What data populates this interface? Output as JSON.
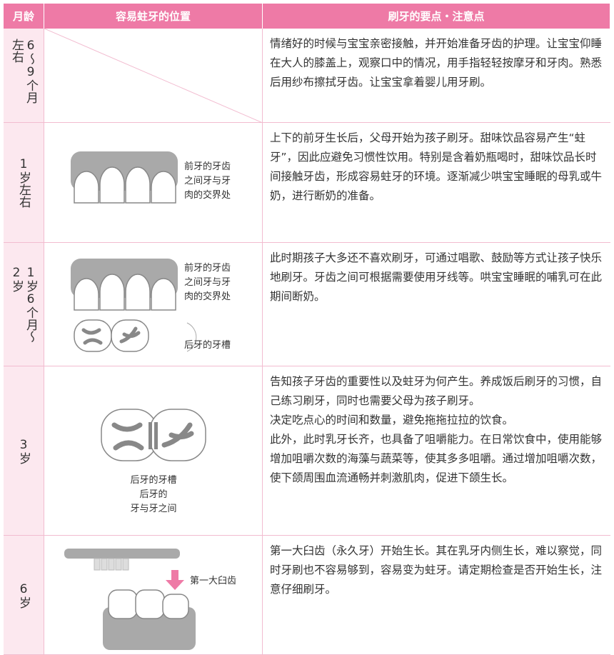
{
  "header": {
    "age": "月龄",
    "position": "容易蛀牙的位置",
    "points": "刷牙的要点・注意点"
  },
  "rows": [
    {
      "age": "6～9个月左右",
      "labels": [],
      "text": [
        "情绪好的时候与宝宝亲密接触，并开始准备牙齿的护理。让宝宝仰睡在大人的膝盖上，观察口中的情况，用手指轻轻按摩牙和牙肉。熟悉后用纱布擦拭牙齿。让宝宝拿着婴儿用牙刷。"
      ]
    },
    {
      "age": "1岁左右",
      "labels": [
        "前牙的牙齿",
        "之间牙与牙",
        "肉的交界处"
      ],
      "text": [
        "上下的前牙生长后，父母开始为孩子刷牙。甜味饮品容易产生“蛀牙”，因此应避免习惯性饮用。特别是含着奶瓶喝时，甜味饮品长时间接触牙齿，形成容易蛀牙的环境。逐渐减少哄宝宝睡眠的母乳或牛奶，进行断奶的准备。"
      ]
    },
    {
      "age": "1岁6个月～2岁",
      "labels": [
        "前牙的牙齿",
        "之间牙与牙",
        "肉的交界处",
        "后牙的牙槽"
      ],
      "text": [
        "此时期孩子大多还不喜欢刷牙，可通过唱歌、鼓励等方式让孩子快乐地刷牙。牙齿之间可根据需要使用牙线等。哄宝宝睡眠的哺乳可在此期间断奶。"
      ]
    },
    {
      "age": "3岁",
      "labels": [
        "后牙的牙槽",
        "后牙的",
        "牙与牙之间"
      ],
      "text": [
        "告知孩子牙齿的重要性以及蛀牙为何产生。养成饭后刷牙的习惯，自己练习刷牙，同时也需要父母为孩子刷牙。",
        "决定吃点心的时间和数量，避免拖拖拉拉的饮食。",
        "此外，此时乳牙长齐，也具备了咀嚼能力。在日常饮食中，使用能够增加咀嚼次数的海藻与蔬菜等，使其多多咀嚼。通过增加咀嚼次数，使下颌周围血流通畅并刺激肌肉，促进下颌生长。"
      ]
    },
    {
      "age": "6岁",
      "labels": [
        "第一大臼齿"
      ],
      "text": [
        "第一大臼齿（永久牙）开始生长。其在乳牙内侧生长，难以察觉，同时牙刷也不容易够到，容易变为蛀牙。请定期检查是否开始生长，注意仔细刷牙。"
      ]
    }
  ]
}
